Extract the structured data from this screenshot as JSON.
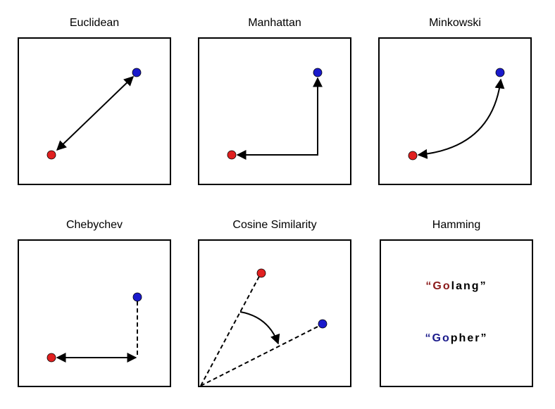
{
  "panels": [
    {
      "title": "Euclidean"
    },
    {
      "title": "Manhattan"
    },
    {
      "title": "Minkowski"
    },
    {
      "title": "Chebychev"
    },
    {
      "title": "Cosine Similarity"
    },
    {
      "title": "Hamming"
    }
  ],
  "hamming": {
    "word1": {
      "open": "“",
      "chars": [
        {
          "ch": "G",
          "color": "#8b1a1a"
        },
        {
          "ch": "o",
          "color": "#8b1a1a"
        },
        {
          "ch": "l",
          "color": "#000000"
        },
        {
          "ch": "a",
          "color": "#000000"
        },
        {
          "ch": "n",
          "color": "#000000"
        },
        {
          "ch": "g",
          "color": "#000000"
        }
      ],
      "close": "”",
      "quote_color": "#8b1a1a"
    },
    "word2": {
      "open": "“",
      "chars": [
        {
          "ch": "G",
          "color": "#1a1a8b"
        },
        {
          "ch": "o",
          "color": "#1a1a8b"
        },
        {
          "ch": "p",
          "color": "#000000"
        },
        {
          "ch": "h",
          "color": "#000000"
        },
        {
          "ch": "e",
          "color": "#000000"
        },
        {
          "ch": "r",
          "color": "#000000"
        }
      ],
      "close": "”",
      "quote_color": "#1a1a8b"
    }
  },
  "colors": {
    "point_a": "#e02020",
    "point_b": "#1a1acc",
    "line": "#000000"
  }
}
